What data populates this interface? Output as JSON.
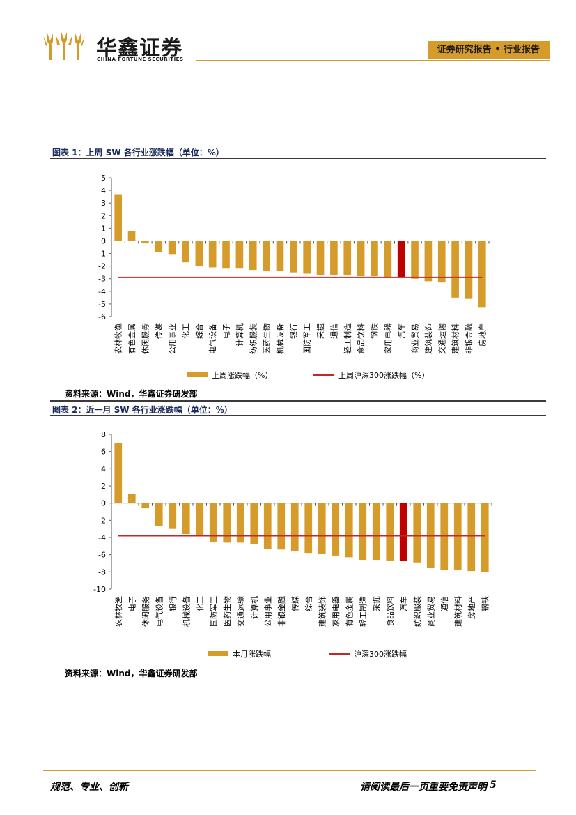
{
  "header": {
    "logo_cn": "华鑫证券",
    "logo_en": "CHINA FORTUNE SECURITIES",
    "report_type": "证券研究报告 • 行业报告",
    "accent_color": "#d69c2b"
  },
  "figures": [
    {
      "title": "图表 1：上周 SW 各行业涨跌幅（单位：%）",
      "source": "资料来源：Wind，华鑫证券研发部"
    },
    {
      "title": "图表 2：近一月 SW 各行业涨跌幅（单位：%）",
      "source": "资料来源：Wind，华鑫证券研发部"
    }
  ],
  "chart_data": [
    {
      "type": "bar",
      "title": "图表 1：上周 SW 各行业涨跌幅（单位：%）",
      "categories": [
        "农林牧渔",
        "有色金属",
        "休闲服务",
        "传媒",
        "公用事业",
        "化工",
        "综合",
        "电气设备",
        "电子",
        "计算机",
        "纺织服装",
        "医药生物",
        "机械设备",
        "银行",
        "国防军工",
        "采掘",
        "通信",
        "轻工制造",
        "食品饮料",
        "钢铁",
        "家用电器",
        "汽车",
        "商业贸易",
        "建筑装饰",
        "交通运输",
        "建筑材料",
        "非银金融",
        "房地产"
      ],
      "series": [
        {
          "name": "上周涨跌幅（%）",
          "values": [
            3.7,
            0.8,
            -0.2,
            -0.9,
            -1.1,
            -1.7,
            -2.0,
            -2.1,
            -2.2,
            -2.2,
            -2.3,
            -2.4,
            -2.4,
            -2.5,
            -2.6,
            -2.7,
            -2.7,
            -2.7,
            -2.8,
            -2.8,
            -2.9,
            -2.9,
            -3.0,
            -3.2,
            -3.3,
            -4.5,
            -4.6,
            -5.3
          ],
          "highlight_index": 21
        },
        {
          "name": "上周沪深300涨跌幅（%）",
          "type": "line",
          "value": -2.9
        }
      ],
      "yticks": [
        "5",
        "4",
        "3",
        "2",
        "1",
        "0",
        "-1",
        "-2",
        "-3",
        "-4",
        "-5",
        "-6"
      ],
      "ylim": [
        -6,
        5
      ],
      "colors": {
        "bar": "#d69c2b",
        "highlight": "#c00000",
        "line": "#c0282b"
      }
    },
    {
      "type": "bar",
      "title": "图表 2：近一月 SW 各行业涨跌幅（单位：%）",
      "categories": [
        "农林牧渔",
        "电子",
        "休闲服务",
        "电气设备",
        "银行",
        "机械设备",
        "化工",
        "国防军工",
        "医药生物",
        "交通运输",
        "计算机",
        "公用事业",
        "非银金融",
        "传媒",
        "综合",
        "建筑装饰",
        "家用电器",
        "有色金属",
        "轻工制造",
        "采掘",
        "食品饮料",
        "汽车",
        "纺织服装",
        "商业贸易",
        "通信",
        "建筑材料",
        "房地产",
        "钢铁"
      ],
      "series": [
        {
          "name": "本月涨跌幅",
          "values": [
            7.0,
            1.1,
            -0.6,
            -2.7,
            -3.0,
            -3.6,
            -3.7,
            -4.5,
            -4.6,
            -4.6,
            -4.8,
            -5.3,
            -5.4,
            -5.6,
            -5.8,
            -5.9,
            -6.1,
            -6.3,
            -6.6,
            -6.6,
            -6.7,
            -6.7,
            -6.9,
            -7.5,
            -7.8,
            -7.8,
            -7.9,
            -8.0
          ],
          "highlight_index": 21
        },
        {
          "name": "沪深300涨跌幅",
          "type": "line",
          "value": -3.8
        }
      ],
      "yticks": [
        "8",
        "6",
        "4",
        "2",
        "0",
        "-2",
        "-4",
        "-6",
        "-8",
        "-10"
      ],
      "ylim": [
        -10,
        8
      ],
      "colors": {
        "bar": "#d69c2b",
        "highlight": "#c00000",
        "line": "#c0282b"
      }
    }
  ],
  "footer": {
    "left": "规范、专业、创新",
    "right": "请阅读最后一页重要免责声明",
    "page_number": "5"
  }
}
